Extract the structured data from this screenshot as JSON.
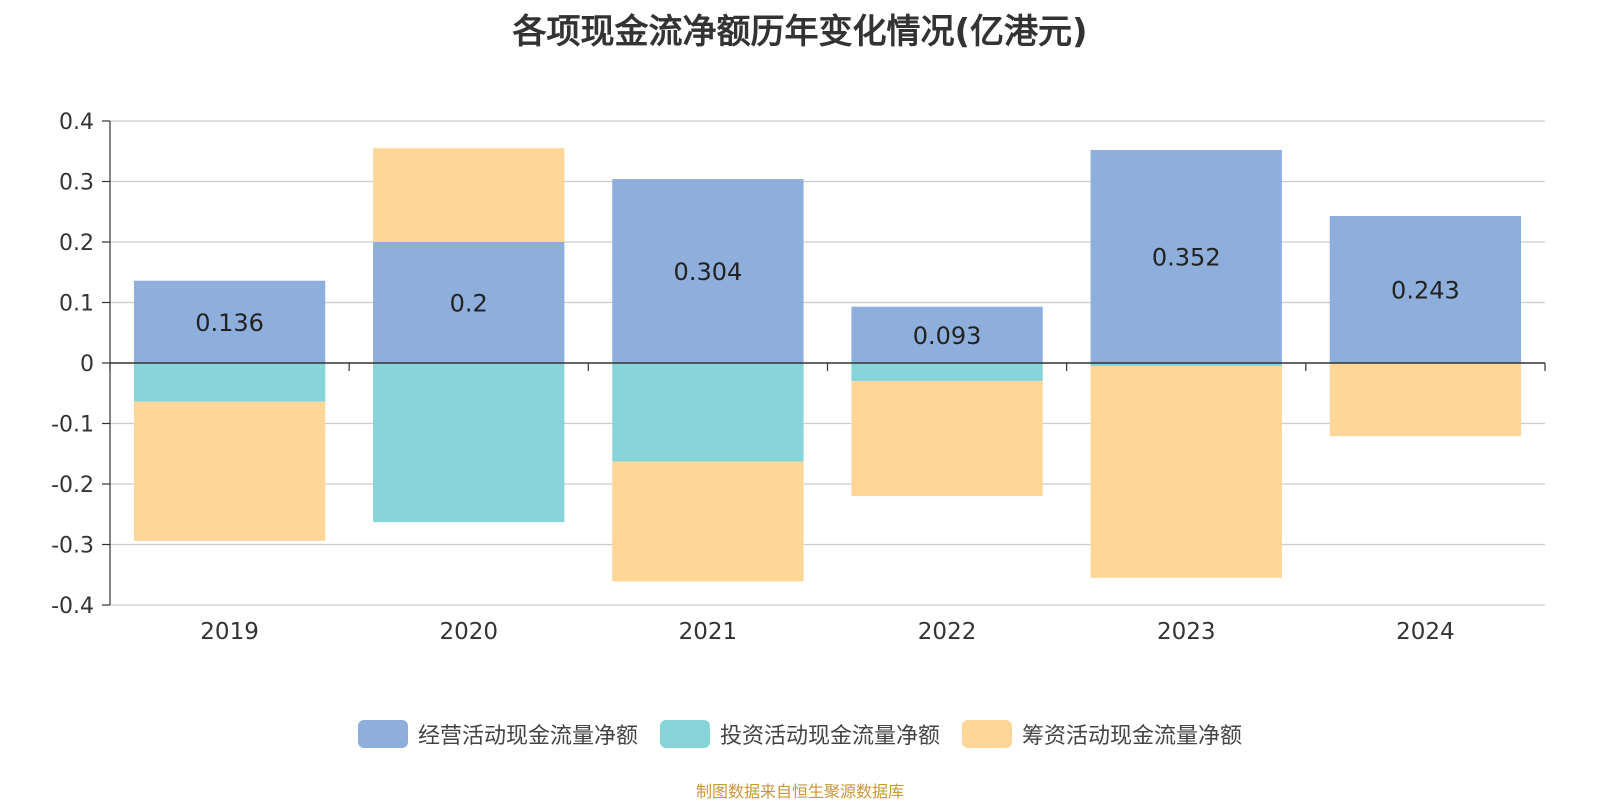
{
  "chart_data": {
    "type": "bar",
    "stacked": true,
    "title": "各项现金流净额历年变化情况(亿港元)",
    "categories": [
      "2019",
      "2020",
      "2021",
      "2022",
      "2023",
      "2024"
    ],
    "ylim": [
      -0.4,
      0.4
    ],
    "yticks": [
      "0.4",
      "0.3",
      "0.2",
      "0.1",
      "0",
      "-0.1",
      "-0.2",
      "-0.3",
      "-0.4"
    ],
    "ytick_values": [
      0.4,
      0.3,
      0.2,
      0.1,
      0,
      -0.1,
      -0.2,
      -0.3,
      -0.4
    ],
    "grid": true,
    "legend_position": "bottom",
    "series": [
      {
        "name": "经营活动现金流量净额",
        "color": "#8eaedb",
        "values": [
          0.136,
          0.2,
          0.304,
          0.093,
          0.352,
          0.243
        ],
        "labels": [
          "0.136",
          "0.2",
          "0.304",
          "0.093",
          "0.352",
          "0.243"
        ]
      },
      {
        "name": "投资活动现金流量净额",
        "color": "#88d5d9",
        "values": [
          -0.064,
          -0.263,
          -0.163,
          -0.03,
          -0.005,
          0
        ]
      },
      {
        "name": "筹资活动现金流量净额",
        "color": "#fed798",
        "values": [
          -0.23,
          0.155,
          -0.198,
          -0.19,
          -0.35,
          -0.121
        ]
      }
    ],
    "source": "制图数据来自恒生聚源数据库"
  }
}
